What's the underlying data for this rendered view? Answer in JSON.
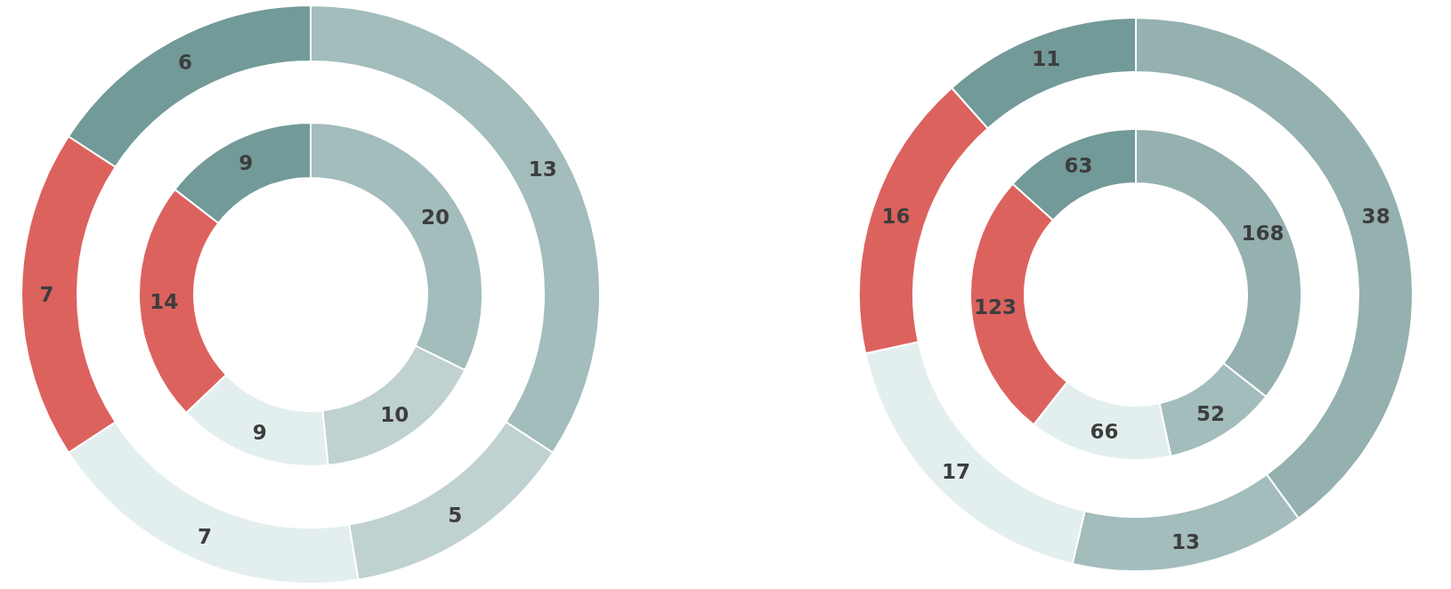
{
  "chart_data": [
    {
      "type": "donut",
      "categories": [
        null,
        null,
        null,
        null,
        null
      ],
      "data_labels": true,
      "series": [
        {
          "values": [
            20,
            10,
            9,
            14,
            9
          ],
          "colors": [
            "#a3bcbc",
            "#bfd1d0",
            "#e3efee",
            "#dc625e",
            "#729a98"
          ]
        },
        {
          "values": [
            13,
            5,
            7,
            7,
            6
          ],
          "colors": [
            "#a3bcbc",
            "#bfd1d0",
            "#e3efee",
            "#dc625e",
            "#729a98"
          ]
        }
      ]
    },
    {
      "type": "donut",
      "categories": [
        null,
        null,
        null,
        null,
        null
      ],
      "data_labels": true,
      "series": [
        {
          "values": [
            168,
            52,
            66,
            123,
            63
          ],
          "colors": [
            "#94b0af",
            "#a3bcbc",
            "#e3efee",
            "#dc625e",
            "#729a98"
          ]
        },
        {
          "values": [
            38,
            13,
            17,
            16,
            11
          ],
          "colors": [
            "#94b0af",
            "#a3bcbc",
            "#e3efee",
            "#dc625e",
            "#729a98"
          ]
        }
      ]
    }
  ]
}
